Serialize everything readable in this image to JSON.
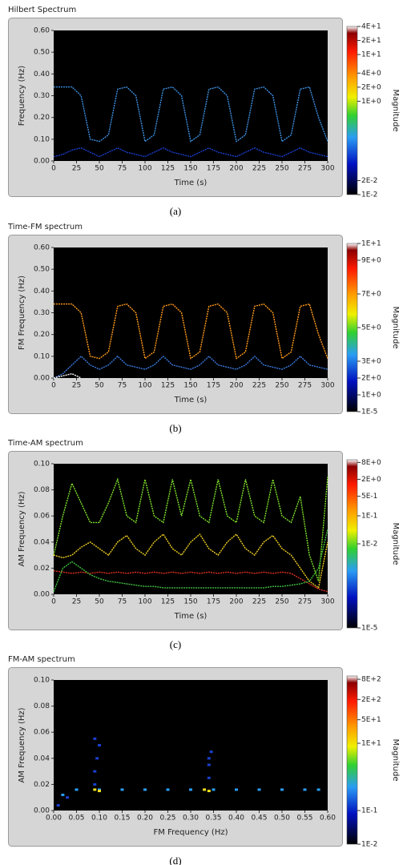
{
  "chart_data": [
    {
      "type": "line",
      "title": "Hilbert Spectrum",
      "caption": "(a)",
      "xlabel": "Time (s)",
      "ylabel": "Frequency (Hz)",
      "xlim": [
        0,
        300
      ],
      "xticks": [
        0,
        25,
        50,
        75,
        100,
        125,
        150,
        175,
        200,
        225,
        250,
        275,
        300
      ],
      "ylim": [
        0,
        0.6
      ],
      "yticks": [
        {
          "value": 0,
          "label": "0.00"
        },
        {
          "value": 0.1,
          "label": "0.10"
        },
        {
          "value": 0.2,
          "label": "0.20"
        },
        {
          "value": 0.3,
          "label": "0.30"
        },
        {
          "value": 0.4,
          "label": "0.40"
        },
        {
          "value": 0.5,
          "label": "0.50"
        },
        {
          "value": 0.6,
          "label": "0.60"
        }
      ],
      "x": [
        0,
        10,
        20,
        30,
        40,
        50,
        60,
        70,
        80,
        90,
        100,
        110,
        120,
        130,
        140,
        150,
        160,
        170,
        180,
        190,
        200,
        210,
        220,
        230,
        240,
        250,
        260,
        270,
        280,
        290,
        300
      ],
      "series": [
        {
          "color": "#3d8fe0",
          "values": [
            0.34,
            0.34,
            0.34,
            0.3,
            0.1,
            0.09,
            0.12,
            0.33,
            0.34,
            0.3,
            0.09,
            0.12,
            0.33,
            0.34,
            0.3,
            0.09,
            0.12,
            0.33,
            0.34,
            0.3,
            0.09,
            0.12,
            0.33,
            0.34,
            0.3,
            0.09,
            0.12,
            0.33,
            0.34,
            0.2,
            0.09
          ]
        },
        {
          "color": "#1a3fd0",
          "values": [
            0.02,
            0.03,
            0.05,
            0.06,
            0.04,
            0.02,
            0.04,
            0.06,
            0.04,
            0.03,
            0.02,
            0.04,
            0.06,
            0.04,
            0.03,
            0.02,
            0.04,
            0.06,
            0.04,
            0.03,
            0.02,
            0.04,
            0.06,
            0.04,
            0.03,
            0.02,
            0.04,
            0.06,
            0.04,
            0.03,
            0.02
          ]
        }
      ],
      "colorbar": {
        "label": "Magnitude",
        "log": true,
        "clim": [
          0.01,
          40
        ],
        "ticks": [
          {
            "value": 40,
            "label": "4E+1"
          },
          {
            "value": 20,
            "label": "2E+1"
          },
          {
            "value": 10,
            "label": "1E+1"
          },
          {
            "value": 4,
            "label": "4E+0"
          },
          {
            "value": 2,
            "label": "2E+0"
          },
          {
            "value": 1,
            "label": "1E+0"
          },
          {
            "value": 0.02,
            "label": "2E-2"
          },
          {
            "value": 0.01,
            "label": "1E-2"
          }
        ]
      }
    },
    {
      "type": "line",
      "title": "Time-FM spectrum",
      "caption": "(b)",
      "xlabel": "Time (s)",
      "ylabel": "FM Frequency (Hz)",
      "xlim": [
        0,
        300
      ],
      "xticks": [
        0,
        25,
        50,
        75,
        100,
        125,
        150,
        175,
        200,
        225,
        250,
        275,
        300
      ],
      "ylim": [
        0,
        0.6
      ],
      "yticks": [
        {
          "value": 0,
          "label": "0.00"
        },
        {
          "value": 0.1,
          "label": "0.10"
        },
        {
          "value": 0.2,
          "label": "0.20"
        },
        {
          "value": 0.3,
          "label": "0.30"
        },
        {
          "value": 0.4,
          "label": "0.40"
        },
        {
          "value": 0.5,
          "label": "0.50"
        },
        {
          "value": 0.6,
          "label": "0.60"
        }
      ],
      "x": [
        0,
        10,
        20,
        30,
        40,
        50,
        60,
        70,
        80,
        90,
        100,
        110,
        120,
        130,
        140,
        150,
        160,
        170,
        180,
        190,
        200,
        210,
        220,
        230,
        240,
        250,
        260,
        270,
        280,
        290,
        300
      ],
      "series": [
        {
          "color": "#ff9a1a",
          "values": [
            0.34,
            0.34,
            0.34,
            0.3,
            0.1,
            0.09,
            0.12,
            0.33,
            0.34,
            0.3,
            0.09,
            0.12,
            0.33,
            0.34,
            0.3,
            0.09,
            0.12,
            0.33,
            0.34,
            0.3,
            0.09,
            0.12,
            0.33,
            0.34,
            0.3,
            0.09,
            0.12,
            0.33,
            0.34,
            0.2,
            0.09
          ]
        },
        {
          "color": "#3a7be0",
          "values": [
            0,
            0.02,
            0.06,
            0.1,
            0.06,
            0.04,
            0.06,
            0.1,
            0.06,
            0.05,
            0.04,
            0.06,
            0.1,
            0.06,
            0.05,
            0.04,
            0.06,
            0.1,
            0.06,
            0.05,
            0.04,
            0.06,
            0.1,
            0.06,
            0.05,
            0.04,
            0.06,
            0.1,
            0.06,
            0.05,
            0.04
          ]
        },
        {
          "color": "#ffffff",
          "values": [
            0,
            0.01,
            0.02,
            0,
            null,
            null,
            null,
            null,
            null,
            null,
            null,
            null,
            null,
            null,
            null,
            null,
            null,
            null,
            null,
            null,
            null,
            null,
            null,
            null,
            null,
            null,
            null,
            null,
            null,
            null,
            null
          ]
        }
      ],
      "colorbar": {
        "label": "Magnitude",
        "log": false,
        "clim": [
          0,
          10
        ],
        "ticks": [
          {
            "value": 10,
            "label": "1E+1"
          },
          {
            "value": 9,
            "label": "9E+0"
          },
          {
            "value": 7,
            "label": "7E+0"
          },
          {
            "value": 5,
            "label": "5E+0"
          },
          {
            "value": 3,
            "label": "3E+0"
          },
          {
            "value": 2,
            "label": "2E+0"
          },
          {
            "value": 1,
            "label": "1E+0"
          },
          {
            "value": 1e-05,
            "label": "1E-5"
          }
        ]
      }
    },
    {
      "type": "line",
      "title": "Time-AM spectrum",
      "caption": "(c)",
      "xlabel": "Time (s)",
      "ylabel": "AM Frequency (Hz)",
      "xlim": [
        0,
        300
      ],
      "xticks": [
        0,
        25,
        50,
        75,
        100,
        125,
        150,
        175,
        200,
        225,
        250,
        275,
        300
      ],
      "ylim": [
        0,
        0.1
      ],
      "yticks": [
        {
          "value": 0,
          "label": "0.00"
        },
        {
          "value": 0.02,
          "label": "0.02"
        },
        {
          "value": 0.04,
          "label": "0.04"
        },
        {
          "value": 0.06,
          "label": "0.06"
        },
        {
          "value": 0.08,
          "label": "0.08"
        },
        {
          "value": 0.1,
          "label": "0.10"
        }
      ],
      "x": [
        0,
        10,
        20,
        30,
        40,
        50,
        60,
        70,
        80,
        90,
        100,
        110,
        120,
        130,
        140,
        150,
        160,
        170,
        180,
        190,
        200,
        210,
        220,
        230,
        240,
        250,
        260,
        270,
        280,
        290,
        300
      ],
      "series": [
        {
          "color": "#7ee02a",
          "values": [
            0.03,
            0.06,
            0.085,
            0.07,
            0.055,
            0.055,
            0.07,
            0.088,
            0.06,
            0.055,
            0.088,
            0.06,
            0.055,
            0.088,
            0.06,
            0.088,
            0.06,
            0.055,
            0.088,
            0.06,
            0.055,
            0.088,
            0.06,
            0.055,
            0.088,
            0.06,
            0.055,
            0.075,
            0.03,
            0.01,
            0.09
          ]
        },
        {
          "color": "#f0d020",
          "values": [
            0.03,
            0.028,
            0.03,
            0.036,
            0.04,
            0.035,
            0.03,
            0.04,
            0.045,
            0.035,
            0.03,
            0.04,
            0.046,
            0.035,
            0.03,
            0.04,
            0.046,
            0.035,
            0.03,
            0.04,
            0.046,
            0.035,
            0.03,
            0.04,
            0.045,
            0.035,
            0.03,
            0.02,
            0.01,
            0.005,
            0.04
          ]
        },
        {
          "color": "#e03020",
          "values": [
            0.018,
            0.017,
            0.016,
            0.017,
            0.016,
            0.017,
            0.016,
            0.017,
            0.016,
            0.017,
            0.016,
            0.017,
            0.016,
            0.017,
            0.016,
            0.017,
            0.016,
            0.017,
            0.016,
            0.017,
            0.016,
            0.017,
            0.016,
            0.017,
            0.016,
            0.017,
            0.016,
            0.012,
            0.008,
            0.004,
            0.002
          ]
        },
        {
          "color": "#40c040",
          "values": [
            0.002,
            0.02,
            0.025,
            0.02,
            0.015,
            0.012,
            0.01,
            0.009,
            0.008,
            0.007,
            0.006,
            0.006,
            0.005,
            0.005,
            0.005,
            0.005,
            0.005,
            0.005,
            0.005,
            0.005,
            0.005,
            0.005,
            0.005,
            0.005,
            0.006,
            0.006,
            0.007,
            0.008,
            0.01,
            0.02,
            0.05
          ]
        }
      ],
      "colorbar": {
        "label": "Magnitude",
        "log": true,
        "clim": [
          1e-05,
          10
        ],
        "ticks": [
          {
            "value": 8,
            "label": "8E+0"
          },
          {
            "value": 2,
            "label": "2E+0"
          },
          {
            "value": 0.5,
            "label": "5E-1"
          },
          {
            "value": 0.1,
            "label": "1E-1"
          },
          {
            "value": 0.01,
            "label": "1E-2"
          },
          {
            "value": 1e-05,
            "label": "1E-5"
          }
        ]
      }
    },
    {
      "type": "scatter",
      "title": "FM-AM spectrum",
      "caption": "(d)",
      "xlabel": "FM Frequency (Hz)",
      "ylabel": "AM Frequency (Hz)",
      "xlim": [
        0,
        0.6
      ],
      "xticks": [
        {
          "value": 0,
          "label": "0.00"
        },
        {
          "value": 0.05,
          "label": "0.05"
        },
        {
          "value": 0.1,
          "label": "0.10"
        },
        {
          "value": 0.15,
          "label": "0.15"
        },
        {
          "value": 0.2,
          "label": "0.20"
        },
        {
          "value": 0.25,
          "label": "0.25"
        },
        {
          "value": 0.3,
          "label": "0.30"
        },
        {
          "value": 0.35,
          "label": "0.35"
        },
        {
          "value": 0.4,
          "label": "0.40"
        },
        {
          "value": 0.45,
          "label": "0.45"
        },
        {
          "value": 0.5,
          "label": "0.50"
        },
        {
          "value": 0.55,
          "label": "0.55"
        },
        {
          "value": 0.6,
          "label": "0.60"
        }
      ],
      "ylim": [
        0,
        0.1
      ],
      "yticks": [
        {
          "value": 0,
          "label": "0.00"
        },
        {
          "value": 0.02,
          "label": "0.02"
        },
        {
          "value": 0.04,
          "label": "0.04"
        },
        {
          "value": 0.06,
          "label": "0.06"
        },
        {
          "value": 0.08,
          "label": "0.08"
        },
        {
          "value": 0.1,
          "label": "0.10"
        }
      ],
      "series": [
        {
          "color": "#2a9df4",
          "x": [
            0.02,
            0.05,
            0.1,
            0.15,
            0.2,
            0.25,
            0.3,
            0.35,
            0.4,
            0.45,
            0.5,
            0.55,
            0.58
          ],
          "values": [
            0.012,
            0.016,
            0.016,
            0.016,
            0.016,
            0.016,
            0.016,
            0.016,
            0.016,
            0.016,
            0.016,
            0.016,
            0.016
          ]
        },
        {
          "color": "#1a40d0",
          "x": [
            0.01,
            0.03,
            0.09,
            0.09,
            0.095,
            0.1,
            0.09,
            0.34,
            0.34,
            0.345,
            0.34
          ],
          "values": [
            0.004,
            0.01,
            0.02,
            0.03,
            0.04,
            0.05,
            0.055,
            0.025,
            0.035,
            0.045,
            0.04
          ]
        },
        {
          "color": "#f0e020",
          "x": [
            0.09,
            0.1,
            0.33,
            0.34
          ],
          "values": [
            0.016,
            0.015,
            0.016,
            0.015
          ]
        }
      ],
      "colorbar": {
        "label": "Magnitude",
        "log": true,
        "clim": [
          0.01,
          1000
        ],
        "ticks": [
          {
            "value": 800,
            "label": "8E+2"
          },
          {
            "value": 200,
            "label": "2E+2"
          },
          {
            "value": 50,
            "label": "5E+1"
          },
          {
            "value": 10,
            "label": "1E+1"
          },
          {
            "value": 0.1,
            "label": "1E-1"
          },
          {
            "value": 0.01,
            "label": "1E-2"
          }
        ]
      }
    }
  ]
}
